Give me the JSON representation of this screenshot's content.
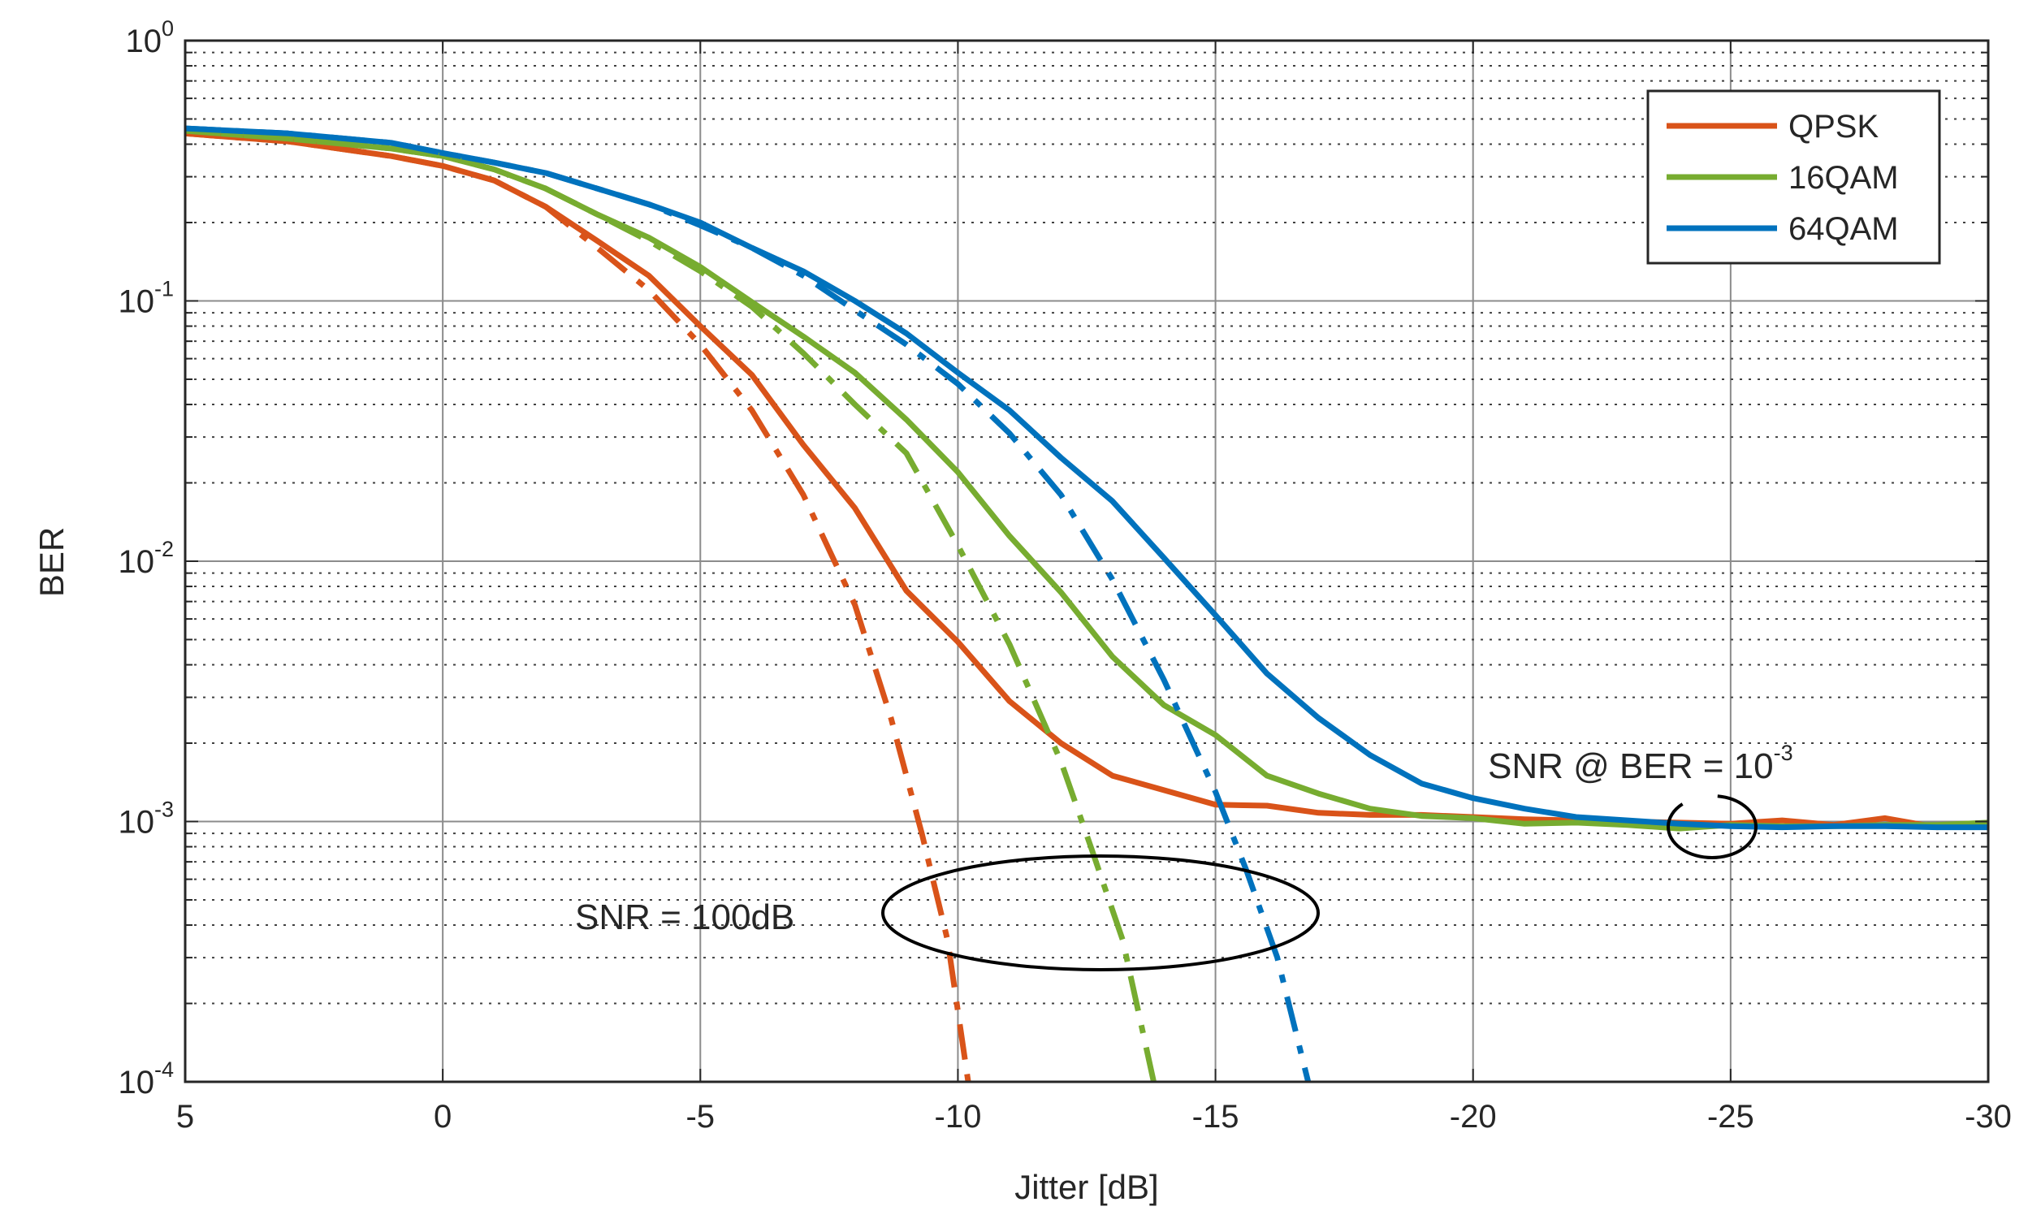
{
  "chart_data": {
    "type": "line",
    "xlabel": "Jitter [dB]",
    "ylabel": "BER",
    "xlim": [
      5,
      -30
    ],
    "ylim": [
      0.0001,
      1
    ],
    "yscale": "log",
    "x_ticks": [
      5,
      0,
      -5,
      -10,
      -15,
      -20,
      -25,
      -30
    ],
    "x_tick_labels": [
      "5",
      "0",
      "-5",
      "-10",
      "-15",
      "-20",
      "-25",
      "-30"
    ],
    "y_ticks": [
      {
        "value": 1,
        "base": "10",
        "exp": "0"
      },
      {
        "value": 0.1,
        "base": "10",
        "exp": "-1"
      },
      {
        "value": 0.01,
        "base": "10",
        "exp": "-2"
      },
      {
        "value": 0.001,
        "base": "10",
        "exp": "-3"
      },
      {
        "value": 0.0001,
        "base": "10",
        "exp": "-4"
      }
    ],
    "grid": true,
    "legend_position": "top-right",
    "legend": [
      "QPSK",
      "16QAM",
      "64QAM"
    ],
    "series": [
      {
        "name": "QPSK",
        "style": "solid",
        "color": "#D95319",
        "x": [
          5,
          3,
          1,
          0,
          -1,
          -2,
          -3,
          -4,
          -5,
          -6,
          -7,
          -8,
          -9,
          -10,
          -11,
          -12,
          -13,
          -14,
          -15,
          -16,
          -17,
          -18,
          -19,
          -20,
          -21,
          -22,
          -23,
          -24,
          -25,
          -26,
          -27,
          -28,
          -29,
          -30
        ],
        "y": [
          0.44,
          0.41,
          0.36,
          0.33,
          0.29,
          0.23,
          0.17,
          0.125,
          0.08,
          0.052,
          0.028,
          0.016,
          0.0077,
          0.0049,
          0.0029,
          0.002,
          0.0015,
          0.00132,
          0.00116,
          0.00115,
          0.00108,
          0.00106,
          0.00106,
          0.00104,
          0.00102,
          0.00101,
          0.001,
          0.00099,
          0.00098,
          0.00101,
          0.00097,
          0.00103,
          0.00095,
          0.00097
        ]
      },
      {
        "name": "16QAM",
        "style": "solid",
        "color": "#77AC30",
        "x": [
          5,
          3,
          1,
          0,
          -1,
          -2,
          -3,
          -4,
          -5,
          -6,
          -7,
          -8,
          -9,
          -10,
          -11,
          -12,
          -13,
          -14,
          -15,
          -16,
          -17,
          -18,
          -19,
          -20,
          -21,
          -22,
          -23,
          -24,
          -25,
          -26,
          -27,
          -28,
          -29,
          -30
        ],
        "y": [
          0.45,
          0.42,
          0.385,
          0.36,
          0.32,
          0.27,
          0.215,
          0.175,
          0.135,
          0.099,
          0.073,
          0.053,
          0.035,
          0.022,
          0.0125,
          0.0076,
          0.0043,
          0.0028,
          0.00215,
          0.0015,
          0.00128,
          0.00112,
          0.00105,
          0.00103,
          0.00098,
          0.00099,
          0.00097,
          0.00094,
          0.00097,
          0.00096,
          0.00096,
          0.00097,
          0.00097,
          0.00099
        ]
      },
      {
        "name": "64QAM",
        "style": "solid",
        "color": "#0072BD",
        "x": [
          5,
          3,
          1,
          0,
          -1,
          -2,
          -3,
          -4,
          -5,
          -6,
          -7,
          -8,
          -9,
          -10,
          -11,
          -12,
          -13,
          -14,
          -15,
          -16,
          -17,
          -18,
          -19,
          -20,
          -21,
          -22,
          -23,
          -24,
          -25,
          -26,
          -27,
          -28,
          -29,
          -30
        ],
        "y": [
          0.46,
          0.44,
          0.405,
          0.37,
          0.34,
          0.31,
          0.27,
          0.235,
          0.2,
          0.16,
          0.13,
          0.1,
          0.075,
          0.053,
          0.038,
          0.025,
          0.017,
          0.0103,
          0.0062,
          0.0037,
          0.0025,
          0.0018,
          0.0014,
          0.00123,
          0.00112,
          0.00104,
          0.00101,
          0.00098,
          0.00096,
          0.00095,
          0.00096,
          0.00096,
          0.00095,
          0.00095
        ]
      },
      {
        "style": "dash-dot",
        "color": "#D95319",
        "x": [
          5,
          3,
          1,
          0,
          -1,
          -2,
          -3,
          -4,
          -5,
          -6,
          -7,
          -8,
          -8.7,
          -9.3,
          -9.8,
          -10.2
        ],
        "y": [
          0.44,
          0.41,
          0.36,
          0.33,
          0.29,
          0.23,
          0.16,
          0.11,
          0.068,
          0.038,
          0.018,
          0.0068,
          0.0025,
          0.0009,
          0.00035,
          0.0001
        ]
      },
      {
        "style": "dash-dot",
        "color": "#77AC30",
        "x": [
          5,
          3,
          1,
          0,
          -1,
          -2,
          -3,
          -4,
          -5,
          -6,
          -7,
          -8,
          -9,
          -10,
          -11,
          -12,
          -12.6,
          -13.2,
          -13.8
        ],
        "y": [
          0.45,
          0.42,
          0.385,
          0.36,
          0.32,
          0.27,
          0.215,
          0.17,
          0.13,
          0.095,
          0.063,
          0.04,
          0.026,
          0.0115,
          0.0048,
          0.0017,
          0.00078,
          0.00035,
          0.0001
        ]
      },
      {
        "style": "dash-dot",
        "color": "#0072BD",
        "x": [
          5,
          3,
          1,
          0,
          -1,
          -2,
          -3,
          -4,
          -5,
          -6,
          -7,
          -8,
          -9,
          -10,
          -11,
          -12,
          -13,
          -14,
          -15,
          -15.6,
          -16.2,
          -16.8
        ],
        "y": [
          0.46,
          0.44,
          0.405,
          0.37,
          0.34,
          0.31,
          0.27,
          0.235,
          0.195,
          0.16,
          0.125,
          0.092,
          0.068,
          0.048,
          0.031,
          0.018,
          0.0085,
          0.0035,
          0.0013,
          0.00065,
          0.0003,
          0.0001
        ]
      }
    ],
    "annotations": [
      {
        "text": "SNR = 100dB"
      },
      {
        "text": "SNR @ BER = 10",
        "superscript": "-3"
      }
    ]
  }
}
